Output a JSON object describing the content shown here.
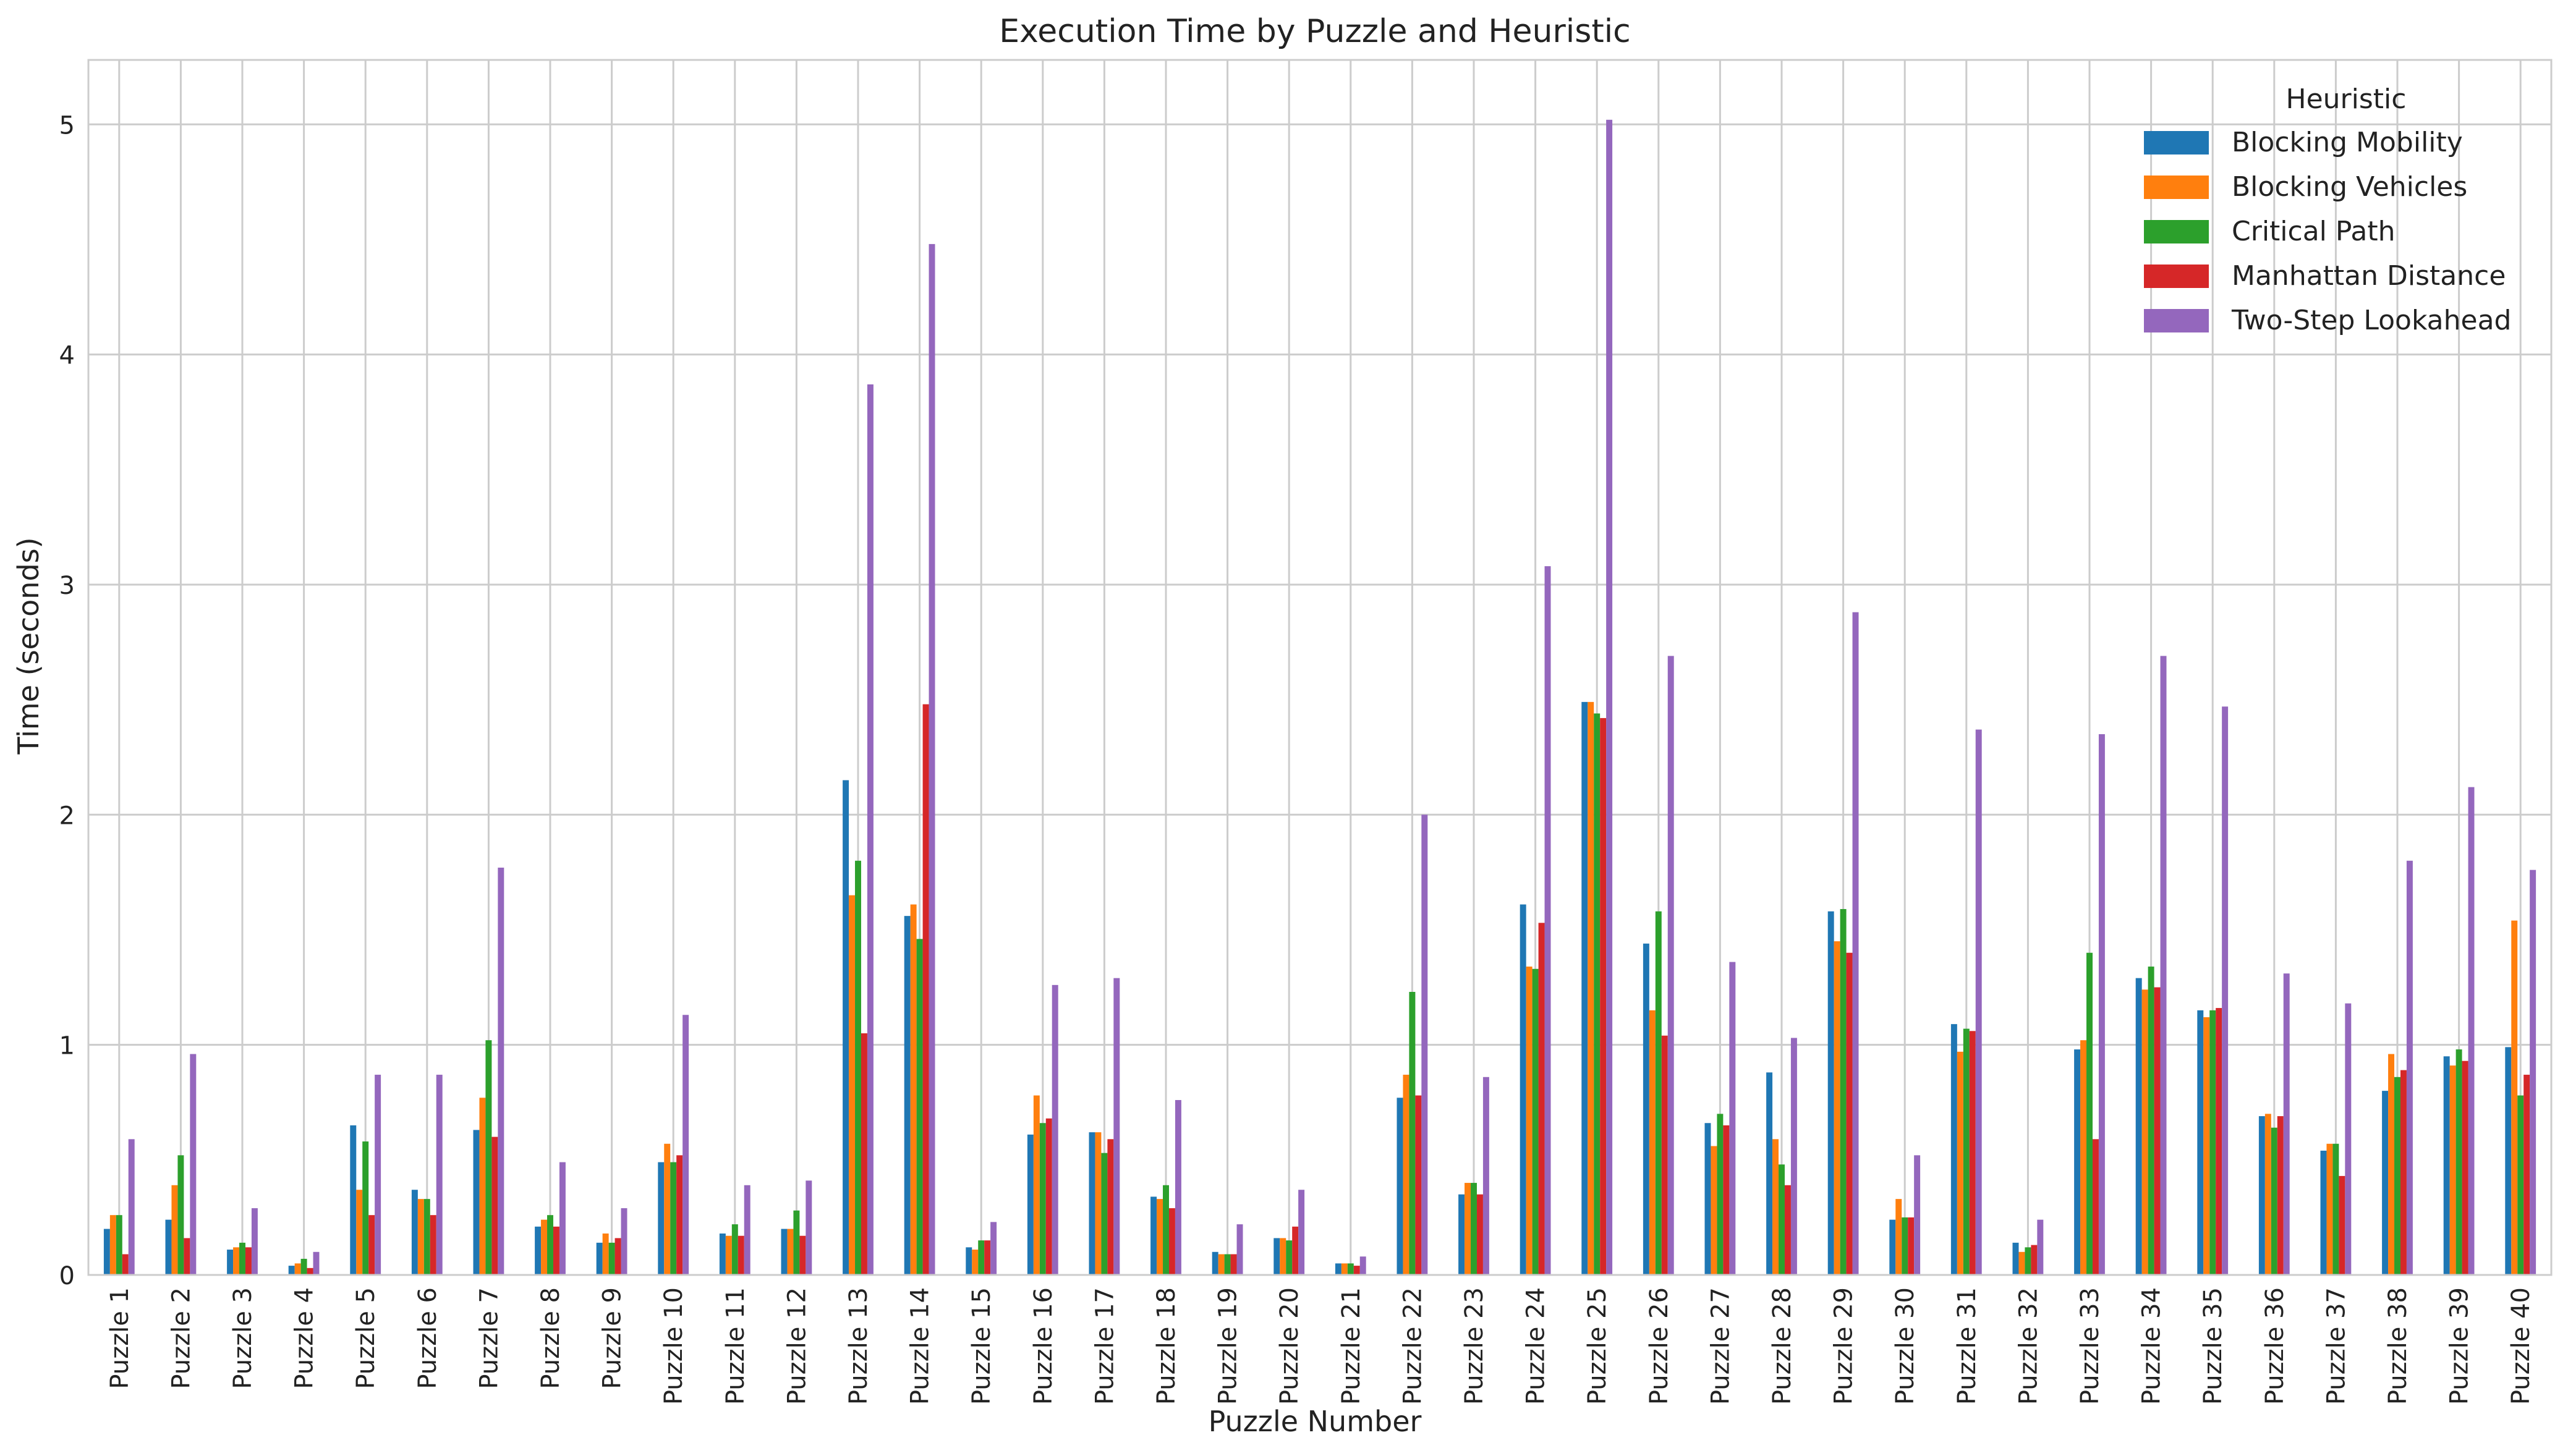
{
  "chart_data": {
    "type": "bar",
    "title": "Execution Time by Puzzle and Heuristic",
    "xlabel": "Puzzle Number",
    "ylabel": "Time (seconds)",
    "ylim": [
      0,
      5.28
    ],
    "yticks": [
      0,
      1,
      2,
      3,
      4,
      5
    ],
    "grid": true,
    "legend": {
      "title": "Heuristic",
      "position": "top-right"
    },
    "categories": [
      "Puzzle 1",
      "Puzzle 2",
      "Puzzle 3",
      "Puzzle 4",
      "Puzzle 5",
      "Puzzle 6",
      "Puzzle 7",
      "Puzzle 8",
      "Puzzle 9",
      "Puzzle 10",
      "Puzzle 11",
      "Puzzle 12",
      "Puzzle 13",
      "Puzzle 14",
      "Puzzle 15",
      "Puzzle 16",
      "Puzzle 17",
      "Puzzle 18",
      "Puzzle 19",
      "Puzzle 20",
      "Puzzle 21",
      "Puzzle 22",
      "Puzzle 23",
      "Puzzle 24",
      "Puzzle 25",
      "Puzzle 26",
      "Puzzle 27",
      "Puzzle 28",
      "Puzzle 29",
      "Puzzle 30",
      "Puzzle 31",
      "Puzzle 32",
      "Puzzle 33",
      "Puzzle 34",
      "Puzzle 35",
      "Puzzle 36",
      "Puzzle 37",
      "Puzzle 38",
      "Puzzle 39",
      "Puzzle 40"
    ],
    "series": [
      {
        "name": "Blocking Mobility",
        "color": "#1f77b4",
        "values": [
          0.2,
          0.24,
          0.11,
          0.04,
          0.65,
          0.37,
          0.63,
          0.21,
          0.14,
          0.49,
          0.18,
          0.2,
          2.15,
          1.56,
          0.12,
          0.61,
          0.62,
          0.34,
          0.1,
          0.16,
          0.05,
          0.77,
          0.35,
          1.61,
          2.49,
          1.44,
          0.66,
          0.88,
          1.58,
          0.24,
          1.09,
          0.14,
          0.98,
          1.29,
          1.15,
          0.69,
          0.54,
          0.8,
          0.95,
          0.99
        ]
      },
      {
        "name": "Blocking Vehicles",
        "color": "#ff7f0e",
        "values": [
          0.26,
          0.39,
          0.12,
          0.05,
          0.37,
          0.33,
          0.77,
          0.24,
          0.18,
          0.57,
          0.17,
          0.2,
          1.65,
          1.61,
          0.11,
          0.78,
          0.62,
          0.33,
          0.09,
          0.16,
          0.05,
          0.87,
          0.4,
          1.34,
          2.49,
          1.15,
          0.56,
          0.59,
          1.45,
          0.33,
          0.97,
          0.1,
          1.02,
          1.24,
          1.12,
          0.7,
          0.57,
          0.96,
          0.91,
          1.54
        ]
      },
      {
        "name": "Critical Path",
        "color": "#2ca02c",
        "values": [
          0.26,
          0.52,
          0.14,
          0.07,
          0.58,
          0.33,
          1.02,
          0.26,
          0.14,
          0.49,
          0.22,
          0.28,
          1.8,
          1.46,
          0.15,
          0.66,
          0.53,
          0.39,
          0.09,
          0.15,
          0.05,
          1.23,
          0.4,
          1.33,
          2.44,
          1.58,
          0.7,
          0.48,
          1.59,
          0.25,
          1.07,
          0.12,
          1.4,
          1.34,
          1.15,
          0.64,
          0.57,
          0.86,
          0.98,
          0.78
        ]
      },
      {
        "name": "Manhattan Distance",
        "color": "#d62728",
        "values": [
          0.09,
          0.16,
          0.12,
          0.03,
          0.26,
          0.26,
          0.6,
          0.21,
          0.16,
          0.52,
          0.17,
          0.17,
          1.05,
          2.48,
          0.15,
          0.68,
          0.59,
          0.29,
          0.09,
          0.21,
          0.04,
          0.78,
          0.35,
          1.53,
          2.42,
          1.04,
          0.65,
          0.39,
          1.4,
          0.25,
          1.06,
          0.13,
          0.59,
          1.25,
          1.16,
          0.69,
          0.43,
          0.89,
          0.93,
          0.87
        ]
      },
      {
        "name": "Two-Step Lookahead",
        "color": "#9467bd",
        "values": [
          0.59,
          0.96,
          0.29,
          0.1,
          0.87,
          0.87,
          1.77,
          0.49,
          0.29,
          1.13,
          0.39,
          0.41,
          3.87,
          4.48,
          0.23,
          1.26,
          1.29,
          0.76,
          0.22,
          0.37,
          0.08,
          2.0,
          0.86,
          3.08,
          5.02,
          2.69,
          1.36,
          1.03,
          2.88,
          0.52,
          2.37,
          0.24,
          2.35,
          2.69,
          2.47,
          1.31,
          1.18,
          1.8,
          2.12,
          1.76
        ]
      }
    ]
  }
}
